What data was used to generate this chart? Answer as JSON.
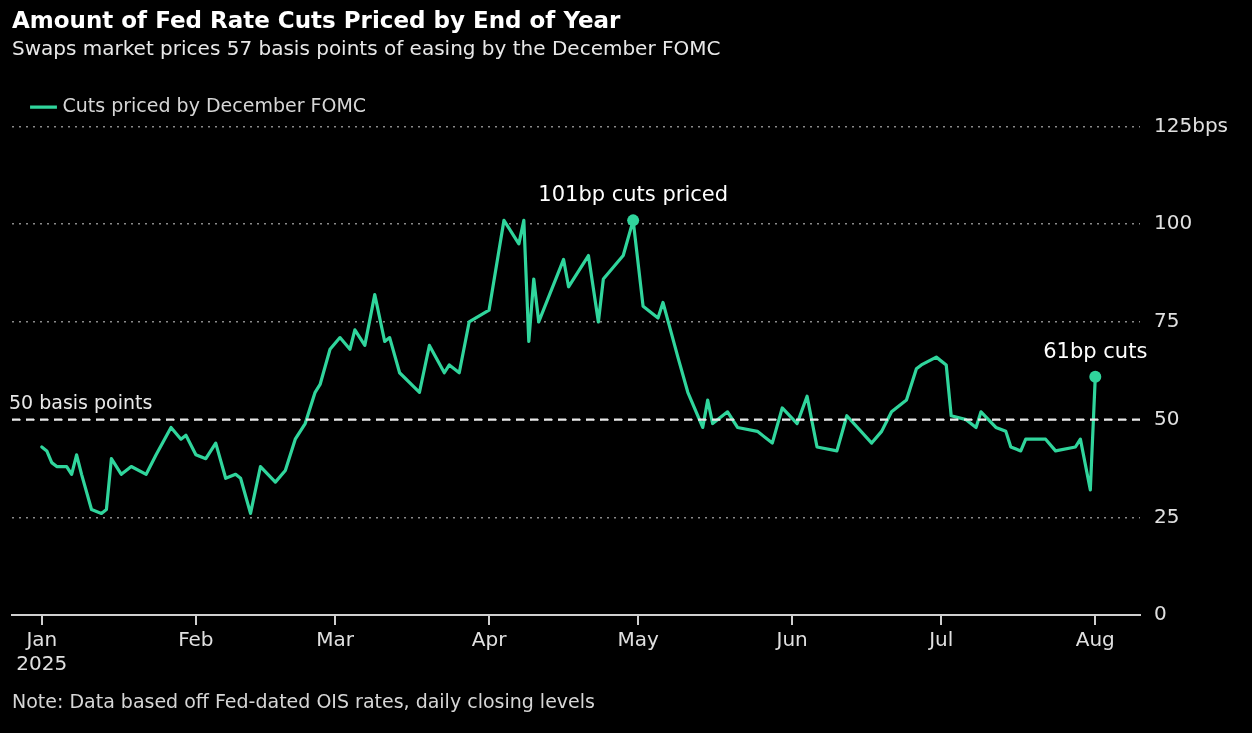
{
  "chart_data": {
    "type": "line",
    "title": "Amount of Fed Rate Cuts Priced by End of Year",
    "subtitle": "Swaps market prices 57 basis points of easing by the December FOMC",
    "x": [
      "2025-01-01",
      "2025-01-02",
      "2025-01-03",
      "2025-01-04",
      "2025-01-06",
      "2025-01-07",
      "2025-01-08",
      "2025-01-09",
      "2025-01-11",
      "2025-01-13",
      "2025-01-14",
      "2025-01-15",
      "2025-01-17",
      "2025-01-19",
      "2025-01-22",
      "2025-01-24",
      "2025-01-27",
      "2025-01-29",
      "2025-01-30",
      "2025-02-01",
      "2025-02-03",
      "2025-02-05",
      "2025-02-07",
      "2025-02-09",
      "2025-02-10",
      "2025-02-12",
      "2025-02-14",
      "2025-02-17",
      "2025-02-19",
      "2025-02-21",
      "2025-02-23",
      "2025-02-25",
      "2025-02-26",
      "2025-02-28",
      "2025-03-02",
      "2025-03-04",
      "2025-03-05",
      "2025-03-07",
      "2025-03-09",
      "2025-03-11",
      "2025-03-12",
      "2025-03-14",
      "2025-03-18",
      "2025-03-20",
      "2025-03-23",
      "2025-03-24",
      "2025-03-26",
      "2025-03-28",
      "2025-04-01",
      "2025-04-04",
      "2025-04-07",
      "2025-04-08",
      "2025-04-09",
      "2025-04-10",
      "2025-04-11",
      "2025-04-16",
      "2025-04-17",
      "2025-04-21",
      "2025-04-23",
      "2025-04-24",
      "2025-04-28",
      "2025-04-30",
      "2025-05-02",
      "2025-05-05",
      "2025-05-06",
      "2025-05-09",
      "2025-05-11",
      "2025-05-14",
      "2025-05-15",
      "2025-05-16",
      "2025-05-19",
      "2025-05-21",
      "2025-05-25",
      "2025-05-28",
      "2025-05-30",
      "2025-06-02",
      "2025-06-04",
      "2025-06-06",
      "2025-06-10",
      "2025-06-12",
      "2025-06-17",
      "2025-06-19",
      "2025-06-21",
      "2025-06-24",
      "2025-06-26",
      "2025-06-27",
      "2025-06-30",
      "2025-07-02",
      "2025-07-03",
      "2025-07-06",
      "2025-07-08",
      "2025-07-09",
      "2025-07-12",
      "2025-07-14",
      "2025-07-15",
      "2025-07-17",
      "2025-07-18",
      "2025-07-22",
      "2025-07-24",
      "2025-07-28",
      "2025-07-29",
      "2025-07-31",
      "2025-08-01"
    ],
    "series": [
      {
        "name": "Cuts priced by December FOMC",
        "color": "#30d59c",
        "values": [
          43,
          42,
          39,
          38,
          38,
          36,
          41,
          36,
          27,
          26,
          27,
          40,
          36,
          38,
          36,
          41,
          48,
          45,
          46,
          41,
          40,
          44,
          35,
          36,
          35,
          26,
          38,
          34,
          37,
          45,
          49,
          57,
          59,
          68,
          71,
          68,
          73,
          69,
          82,
          70,
          71,
          62,
          57,
          69,
          62,
          64,
          62,
          75,
          78,
          101,
          95,
          101,
          70,
          86,
          75,
          91,
          84,
          92,
          75,
          86,
          92,
          101,
          79,
          76,
          80,
          66,
          57,
          48,
          55,
          49,
          52,
          48,
          47,
          44,
          53,
          49,
          56,
          43,
          42,
          51,
          44,
          47,
          52,
          55,
          63,
          64,
          66,
          64,
          51,
          50,
          48,
          52,
          48,
          47,
          43,
          42,
          45,
          45,
          42,
          43,
          45,
          32,
          61
        ]
      }
    ],
    "xlim": [
      "2024-12-26",
      "2025-08-10"
    ],
    "xticks": [
      {
        "value": "2025-01-01",
        "label": "Jan 2025"
      },
      {
        "value": "2025-02-01",
        "label": "Feb"
      },
      {
        "value": "2025-03-01",
        "label": "Mar"
      },
      {
        "value": "2025-04-01",
        "label": "Apr"
      },
      {
        "value": "2025-05-01",
        "label": "May"
      },
      {
        "value": "2025-06-01",
        "label": "Jun"
      },
      {
        "value": "2025-07-01",
        "label": "Jul"
      },
      {
        "value": "2025-08-01",
        "label": "Aug"
      }
    ],
    "ylim": [
      0,
      125
    ],
    "yticks": [
      0,
      25,
      50,
      75,
      100,
      {
        "value": 125,
        "label": "125bps"
      }
    ],
    "grid": "y",
    "legend": "top left",
    "marker": "none",
    "line_style": "solid",
    "ref_lines": [
      {
        "axis": "y",
        "value": 50,
        "label": "50 basis points",
        "color": "#e8e8e8",
        "line_style": "dashed"
      }
    ],
    "annotations": [
      {
        "text": "101bp cuts priced",
        "x": "2025-04-30",
        "y": 101
      },
      {
        "text": "61bp cuts",
        "x": "2025-08-01",
        "y": 61
      },
      "Note: Data based off Fed-dated OIS rates, daily closing levels"
    ]
  }
}
